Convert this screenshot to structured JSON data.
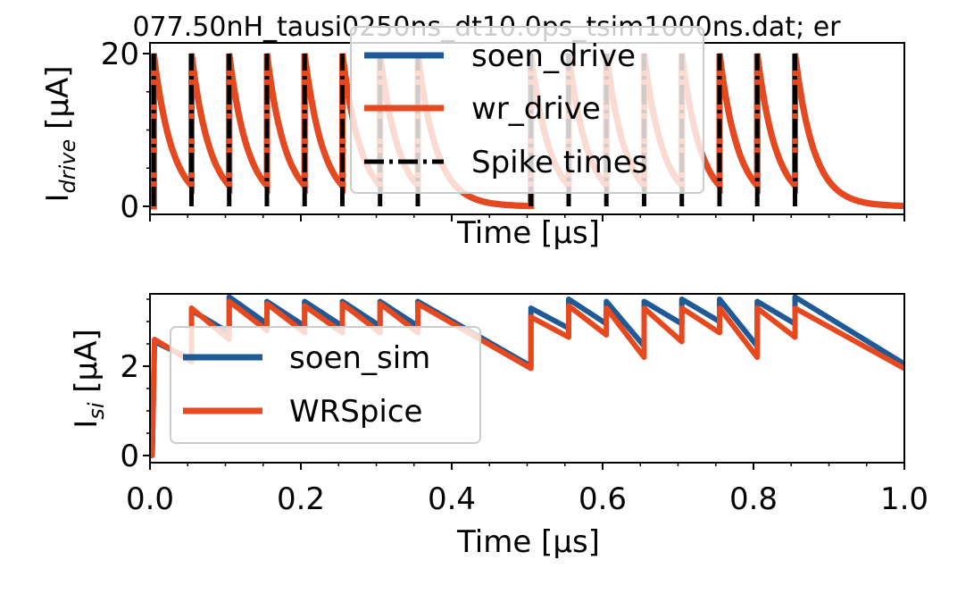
{
  "colors": {
    "soen": "#1f5a96",
    "wr": "#e8481d",
    "spike": "#000000",
    "axes": "#000000"
  },
  "chart_data": [
    {
      "type": "line",
      "title": "077.50nH_tausi0250ns_dt10.0ps_tsim1000ns.dat; er",
      "xlabel": "Time [μs]",
      "ylabel": "I_drive [μA]",
      "ylabel_main": "I",
      "ylabel_sub": "drive",
      "ylabel_unit": " [μA]",
      "xlim": [
        0,
        1.0
      ],
      "ylim": [
        0,
        20
      ],
      "yticks": [
        "0",
        "20"
      ],
      "ytick_values": [
        0,
        20
      ],
      "xtick_labels_visible": false,
      "legend_location": "upper center",
      "legend": [
        "soen_drive",
        "wr_drive",
        "Spike times"
      ],
      "spike_times": [
        0.005,
        0.055,
        0.105,
        0.155,
        0.205,
        0.255,
        0.305,
        0.355,
        0.505,
        0.555,
        0.605,
        0.655,
        0.705,
        0.755,
        0.805,
        0.855
      ],
      "pulse_peak": 20,
      "pulse_decay_tau_us": 0.025,
      "series": [
        {
          "name": "soen_drive",
          "line": "solid",
          "kind": "pulse_train"
        },
        {
          "name": "wr_drive",
          "line": "solid",
          "kind": "pulse_train"
        },
        {
          "name": "Spike times",
          "line": "dashdot",
          "kind": "vlines"
        }
      ]
    },
    {
      "type": "line",
      "xlabel": "Time [μs]",
      "ylabel": "I_si [μA]",
      "ylabel_main": "I",
      "ylabel_sub": "si",
      "ylabel_unit": " [μA]",
      "xlim": [
        0,
        1.0
      ],
      "ylim": [
        0,
        3.6
      ],
      "xticks": [
        "0.0",
        "0.2",
        "0.4",
        "0.6",
        "0.8",
        "1.0"
      ],
      "xtick_values": [
        0,
        0.2,
        0.4,
        0.6,
        0.8,
        1.0
      ],
      "yticks": [
        "0",
        "2"
      ],
      "ytick_values": [
        0,
        2
      ],
      "legend_location": "center left",
      "legend": [
        "soen_sim",
        "WRSpice"
      ],
      "series": [
        {
          "name": "soen_sim",
          "x": [
            0.0,
            0.003,
            0.006,
            0.055,
            0.055,
            0.105,
            0.105,
            0.155,
            0.155,
            0.205,
            0.205,
            0.255,
            0.255,
            0.305,
            0.305,
            0.355,
            0.355,
            0.505,
            0.505,
            0.555,
            0.555,
            0.605,
            0.605,
            0.655,
            0.655,
            0.705,
            0.705,
            0.755,
            0.755,
            0.805,
            0.805,
            0.855,
            0.855,
            1.0
          ],
          "y": [
            0.0,
            0.0,
            2.55,
            2.15,
            3.25,
            2.75,
            3.55,
            2.95,
            3.45,
            2.9,
            3.45,
            2.9,
            3.45,
            2.9,
            3.45,
            2.9,
            3.45,
            2.0,
            3.3,
            2.85,
            3.5,
            2.95,
            3.45,
            2.45,
            3.45,
            2.95,
            3.5,
            3.0,
            3.5,
            2.45,
            3.45,
            2.95,
            3.55,
            2.05
          ]
        },
        {
          "name": "WRSpice",
          "x": [
            0.0,
            0.003,
            0.006,
            0.055,
            0.055,
            0.105,
            0.105,
            0.155,
            0.155,
            0.205,
            0.205,
            0.255,
            0.255,
            0.305,
            0.305,
            0.355,
            0.355,
            0.505,
            0.505,
            0.555,
            0.555,
            0.605,
            0.605,
            0.655,
            0.655,
            0.705,
            0.705,
            0.755,
            0.755,
            0.805,
            0.805,
            0.855,
            0.855,
            1.0
          ],
          "y": [
            0.0,
            0.0,
            2.6,
            2.1,
            3.3,
            2.6,
            3.45,
            2.8,
            3.4,
            2.75,
            3.35,
            2.75,
            3.4,
            2.75,
            3.4,
            2.75,
            3.4,
            1.95,
            3.1,
            2.65,
            3.35,
            2.7,
            3.3,
            2.2,
            3.3,
            2.55,
            3.3,
            2.75,
            3.3,
            2.2,
            3.3,
            2.65,
            3.3,
            1.95
          ]
        }
      ]
    }
  ]
}
